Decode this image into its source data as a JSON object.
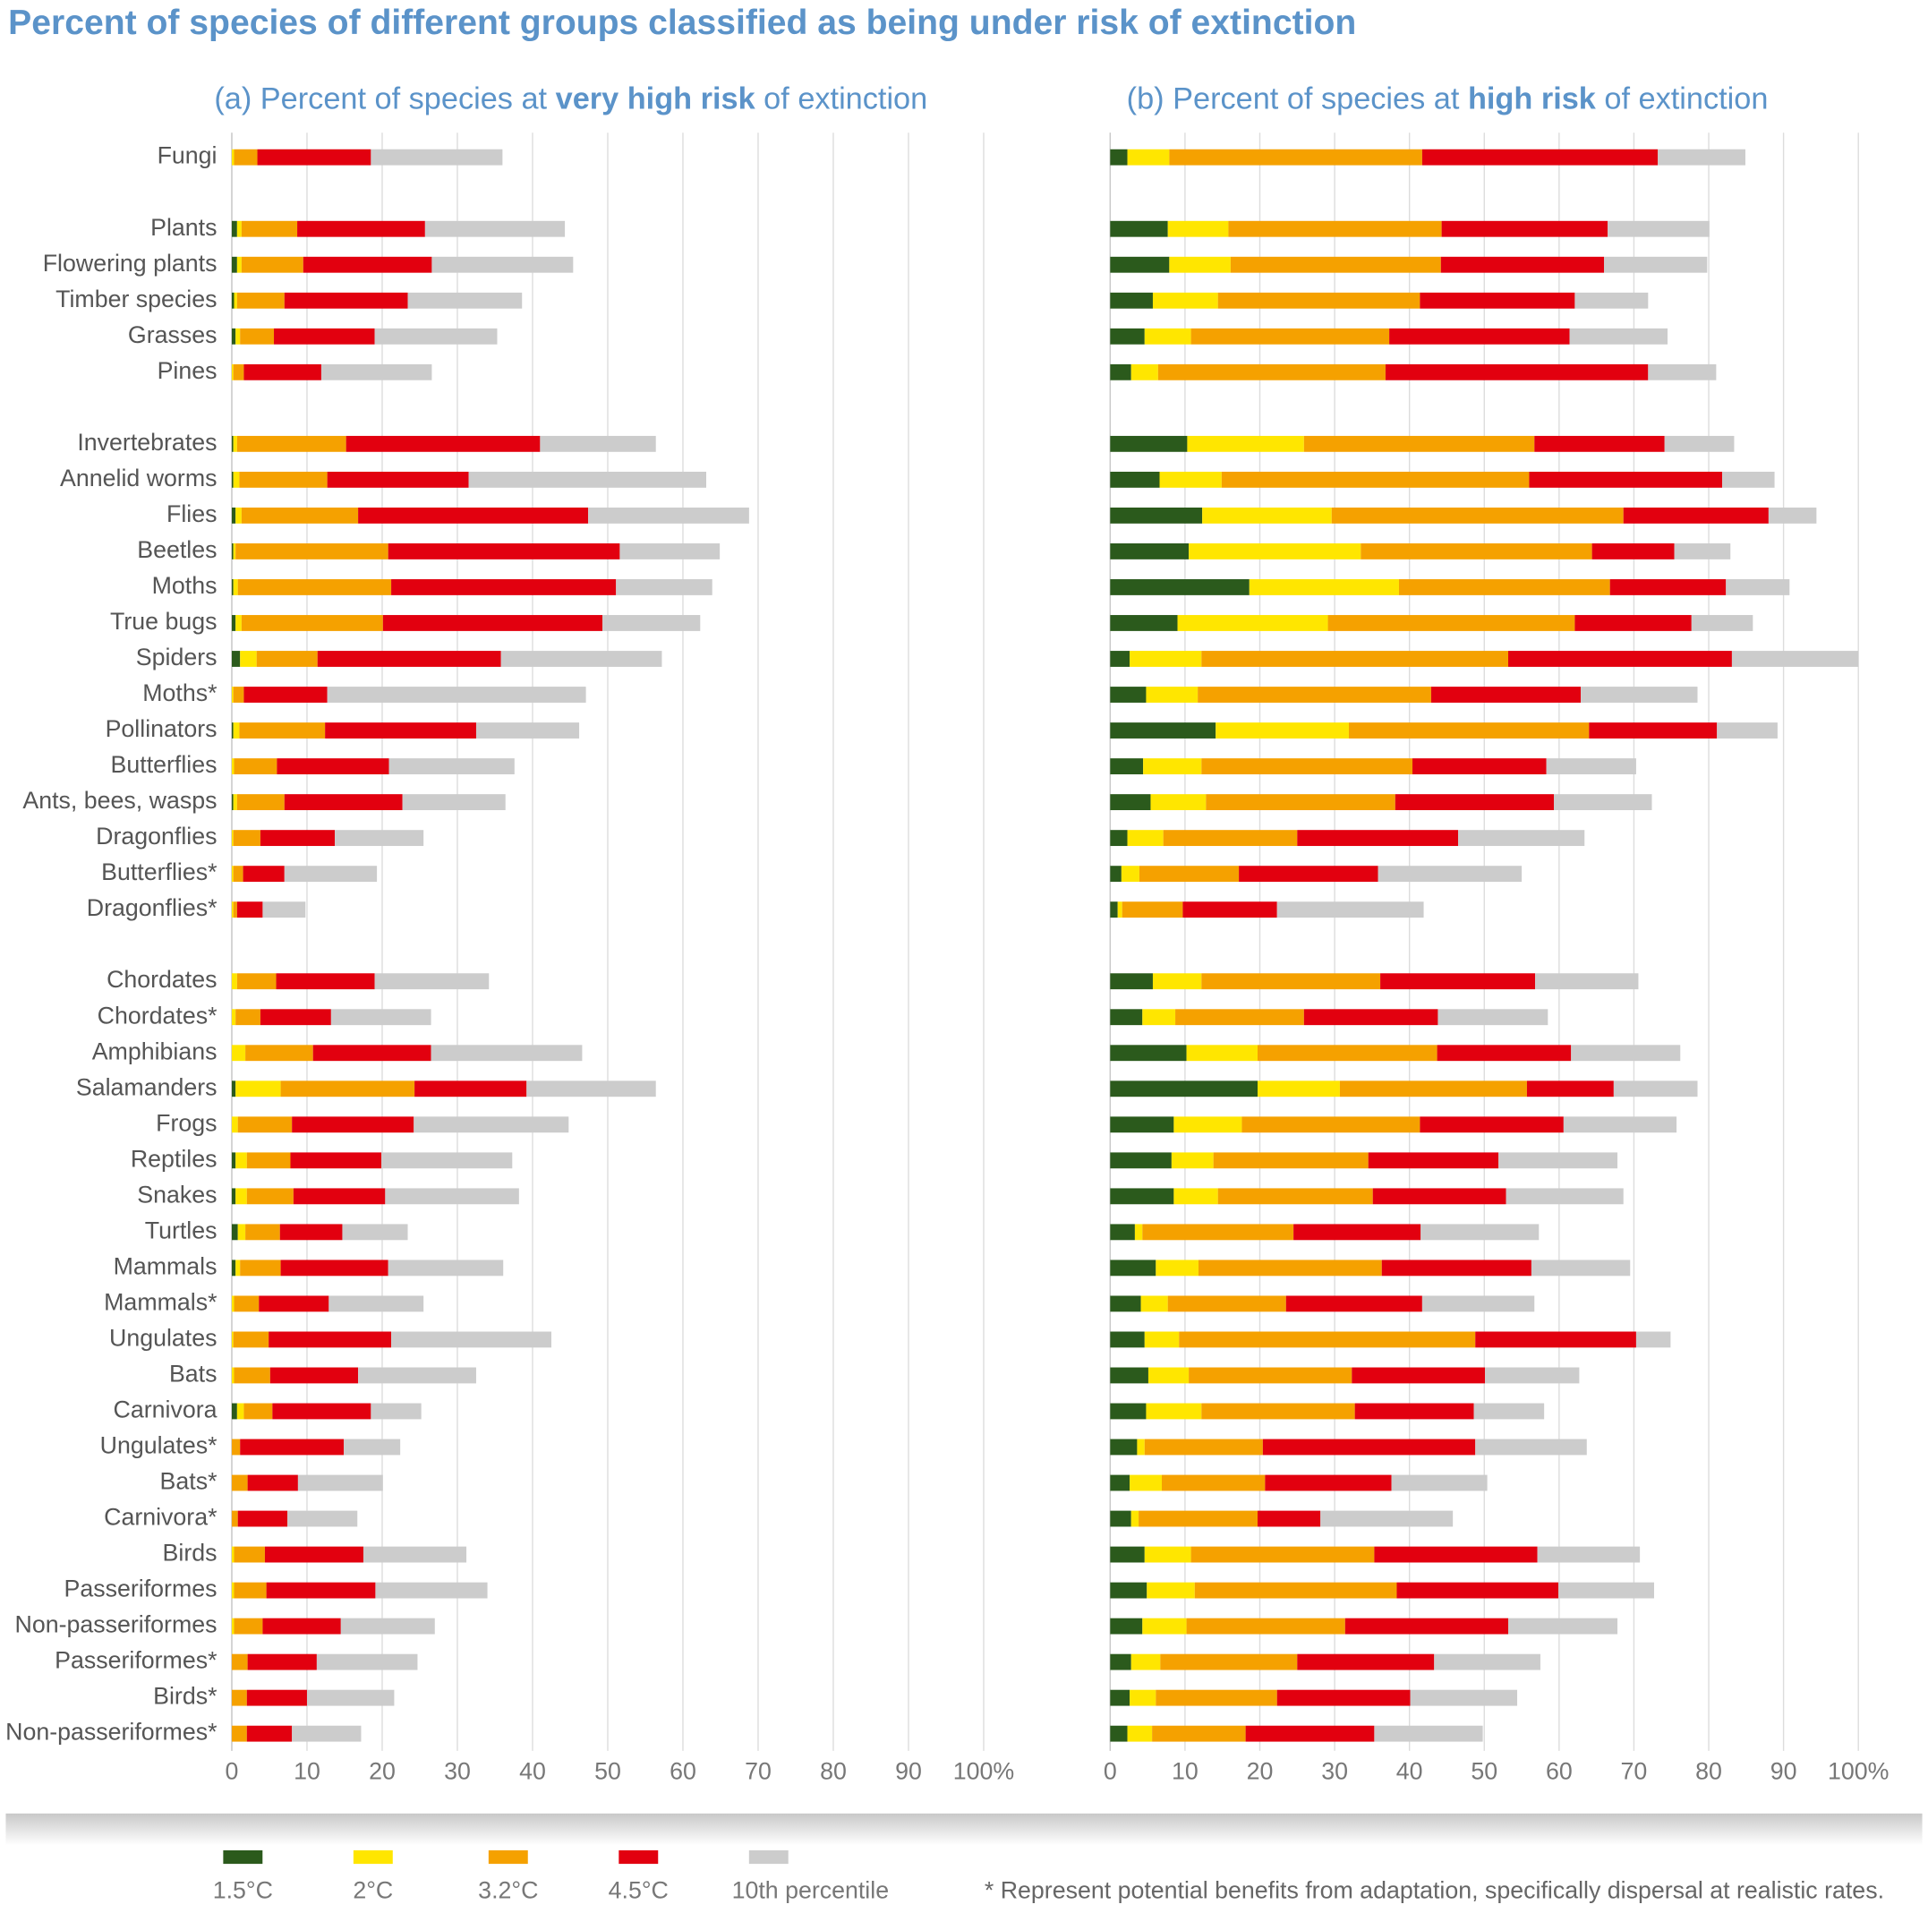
{
  "title": "Percent of species of different groups classified as being under risk of extinction",
  "note": "* Represent potential benefits from adaptation, specifically dispersal at realistic rates.",
  "chart_data": [
    {
      "type": "bar",
      "orientation": "horizontal",
      "stacked": true,
      "title": [
        "(a) Percent of species at ",
        "very high risk",
        " of extinction"
      ],
      "categories": [
        "Fungi",
        null,
        "Plants",
        "Flowering plants",
        "Timber species",
        "Grasses",
        "Pines",
        null,
        "Invertebrates",
        "Annelid worms",
        "Flies",
        "Beetles",
        "Moths",
        "True bugs",
        "Spiders",
        "Moths*",
        "Pollinators",
        "Butterflies",
        "Ants, bees, wasps",
        "Dragonflies",
        "Butterflies*",
        "Dragonflies*",
        null,
        "Chordates",
        "Chordates*",
        "Amphibians",
        "Salamanders",
        "Frogs",
        "Reptiles",
        "Snakes",
        "Turtles",
        "Mammals",
        "Mammals*",
        "Ungulates",
        "Bats",
        "Carnivora",
        "Ungulates*",
        "Bats*",
        "Carnivora*",
        "Birds",
        "Passeriformes",
        "Non-passeriformes",
        "Passeriformes*",
        "Birds*",
        "Non-passeriformes*"
      ],
      "series": [
        {
          "name": "1.5°C",
          "color": "#2b5a1c",
          "values": [
            0,
            null,
            0.7,
            0.7,
            0.3,
            0.5,
            0,
            null,
            0.2,
            0.2,
            0.5,
            0.2,
            0.2,
            0.5,
            1.1,
            0,
            0.2,
            0,
            0.2,
            0,
            0,
            0,
            null,
            0,
            0,
            0,
            0.5,
            0,
            0.5,
            0.5,
            0.8,
            0.5,
            0,
            0,
            0,
            0.7,
            0,
            0,
            0,
            0,
            0,
            0,
            0,
            0,
            0
          ]
        },
        {
          "name": "2°C",
          "color": "#ffe600",
          "values": [
            0.3,
            null,
            0.6,
            0.6,
            0.4,
            0.6,
            0.2,
            null,
            0.5,
            0.8,
            0.8,
            0.3,
            0.6,
            0.8,
            2.2,
            0.2,
            0.8,
            0.3,
            0.5,
            0.2,
            0.2,
            0.2,
            null,
            0.7,
            0.5,
            1.8,
            6.0,
            0.8,
            1.5,
            1.5,
            1.0,
            0.6,
            0.3,
            0.2,
            0.3,
            0.9,
            0,
            0,
            0,
            0.3,
            0.3,
            0.3,
            0,
            0,
            0
          ]
        },
        {
          "name": "3.2°C",
          "color": "#f5a100",
          "values": [
            3.1,
            null,
            7.4,
            8.2,
            6.3,
            4.5,
            1.4,
            null,
            14.5,
            11.7,
            15.5,
            20.3,
            20.4,
            18.8,
            8.1,
            1.4,
            11.4,
            5.7,
            6.3,
            3.6,
            1.3,
            0.5,
            null,
            5.2,
            3.3,
            9.0,
            17.8,
            7.2,
            5.8,
            6.2,
            4.6,
            5.4,
            3.3,
            4.7,
            4.8,
            3.8,
            1.1,
            2.1,
            0.8,
            4.1,
            4.3,
            3.8,
            2.1,
            2.0,
            2.0
          ]
        },
        {
          "name": "4.5°C",
          "color": "#e2000f",
          "values": [
            15.1,
            null,
            17.0,
            17.1,
            16.4,
            13.4,
            10.3,
            null,
            25.8,
            18.8,
            30.6,
            30.8,
            29.9,
            29.2,
            24.4,
            11.1,
            20.1,
            14.9,
            15.7,
            9.9,
            5.5,
            3.4,
            null,
            13.1,
            9.4,
            15.7,
            14.9,
            16.2,
            12.1,
            12.2,
            8.3,
            14.3,
            9.3,
            16.3,
            11.7,
            13.1,
            13.8,
            6.7,
            6.6,
            13.1,
            14.5,
            10.4,
            9.2,
            8.0,
            6.0
          ]
        },
        {
          "name": "10th percentile",
          "color": "#cccccc",
          "values": [
            17.5,
            null,
            18.6,
            18.8,
            15.2,
            16.3,
            14.7,
            null,
            15.4,
            31.6,
            21.4,
            13.3,
            12.8,
            13.0,
            21.4,
            34.4,
            13.7,
            16.7,
            13.7,
            11.8,
            12.3,
            5.7,
            null,
            15.2,
            13.3,
            20.1,
            17.2,
            20.6,
            17.4,
            17.8,
            8.7,
            15.3,
            12.6,
            21.3,
            15.7,
            6.7,
            7.5,
            11.3,
            9.3,
            13.7,
            14.9,
            12.5,
            13.4,
            11.6,
            9.2
          ]
        }
      ],
      "xlim": [
        0,
        100
      ],
      "xticks": [
        0,
        10,
        20,
        30,
        40,
        50,
        60,
        70,
        80,
        90,
        {
          "value": 100,
          "label": "100%"
        }
      ],
      "grid": true
    },
    {
      "type": "bar",
      "orientation": "horizontal",
      "stacked": true,
      "title": [
        "(b) Percent of species at ",
        "high risk",
        " of extinction"
      ],
      "series": [
        {
          "values": [
            2.3,
            null,
            7.7,
            7.9,
            5.7,
            4.6,
            2.8,
            null,
            10.3,
            6.6,
            12.3,
            10.5,
            18.6,
            9.0,
            2.6,
            4.8,
            14.1,
            4.4,
            5.4,
            2.3,
            1.5,
            1.0,
            null,
            5.7,
            4.3,
            10.2,
            19.7,
            8.5,
            8.2,
            8.5,
            3.3,
            6.1,
            4.1,
            4.6,
            5.1,
            4.8,
            3.6,
            2.6,
            2.8,
            4.6,
            4.9,
            4.3,
            2.8,
            2.6,
            2.3
          ]
        },
        {
          "values": [
            5.6,
            null,
            8.1,
            8.2,
            8.7,
            6.2,
            3.6,
            null,
            15.6,
            8.3,
            17.3,
            23.0,
            20.0,
            20.1,
            9.6,
            6.9,
            17.8,
            7.8,
            7.4,
            4.8,
            2.4,
            0.6,
            null,
            6.5,
            4.4,
            9.5,
            11.0,
            9.1,
            5.6,
            5.9,
            1.0,
            5.7,
            3.6,
            4.6,
            5.4,
            7.4,
            1.0,
            4.3,
            1.0,
            6.2,
            6.4,
            5.9,
            3.9,
            3.5,
            3.3
          ]
        },
        {
          "values": [
            33.8,
            null,
            28.5,
            28.1,
            27.0,
            26.5,
            30.4,
            null,
            30.8,
            41.1,
            39.0,
            30.9,
            28.2,
            33.0,
            41.0,
            31.2,
            32.1,
            28.2,
            25.3,
            17.9,
            13.3,
            8.1,
            null,
            23.9,
            17.2,
            24.0,
            25.0,
            23.8,
            20.7,
            20.7,
            20.2,
            24.5,
            15.8,
            39.6,
            21.8,
            20.5,
            15.8,
            13.8,
            15.9,
            24.5,
            27.0,
            21.2,
            18.3,
            16.2,
            12.5
          ]
        },
        {
          "values": [
            31.5,
            null,
            22.2,
            21.8,
            20.7,
            24.1,
            35.1,
            null,
            17.4,
            25.8,
            19.4,
            11.0,
            15.5,
            15.6,
            29.9,
            20.0,
            17.1,
            17.9,
            21.2,
            21.5,
            18.6,
            12.6,
            null,
            20.7,
            17.9,
            17.9,
            11.6,
            19.2,
            17.4,
            17.8,
            17.0,
            20.0,
            18.2,
            21.5,
            17.8,
            15.9,
            28.4,
            16.9,
            8.4,
            21.8,
            21.6,
            21.8,
            18.3,
            17.8,
            17.2
          ]
        },
        {
          "values": [
            11.7,
            null,
            13.6,
            13.8,
            9.8,
            13.1,
            9.1,
            null,
            9.3,
            7.0,
            6.4,
            7.5,
            8.5,
            8.2,
            16.9,
            15.6,
            8.1,
            12.0,
            13.1,
            16.9,
            19.2,
            19.6,
            null,
            13.8,
            14.7,
            14.6,
            11.2,
            15.1,
            15.9,
            15.7,
            15.8,
            13.2,
            15.0,
            4.6,
            12.6,
            9.4,
            14.9,
            12.8,
            17.7,
            13.7,
            12.8,
            14.6,
            14.2,
            14.3,
            14.5
          ]
        }
      ],
      "xlim": [
        0,
        100
      ],
      "xticks": [
        0,
        10,
        20,
        30,
        40,
        50,
        60,
        70,
        80,
        90,
        {
          "value": 100,
          "label": "100%"
        }
      ],
      "grid": true
    }
  ]
}
